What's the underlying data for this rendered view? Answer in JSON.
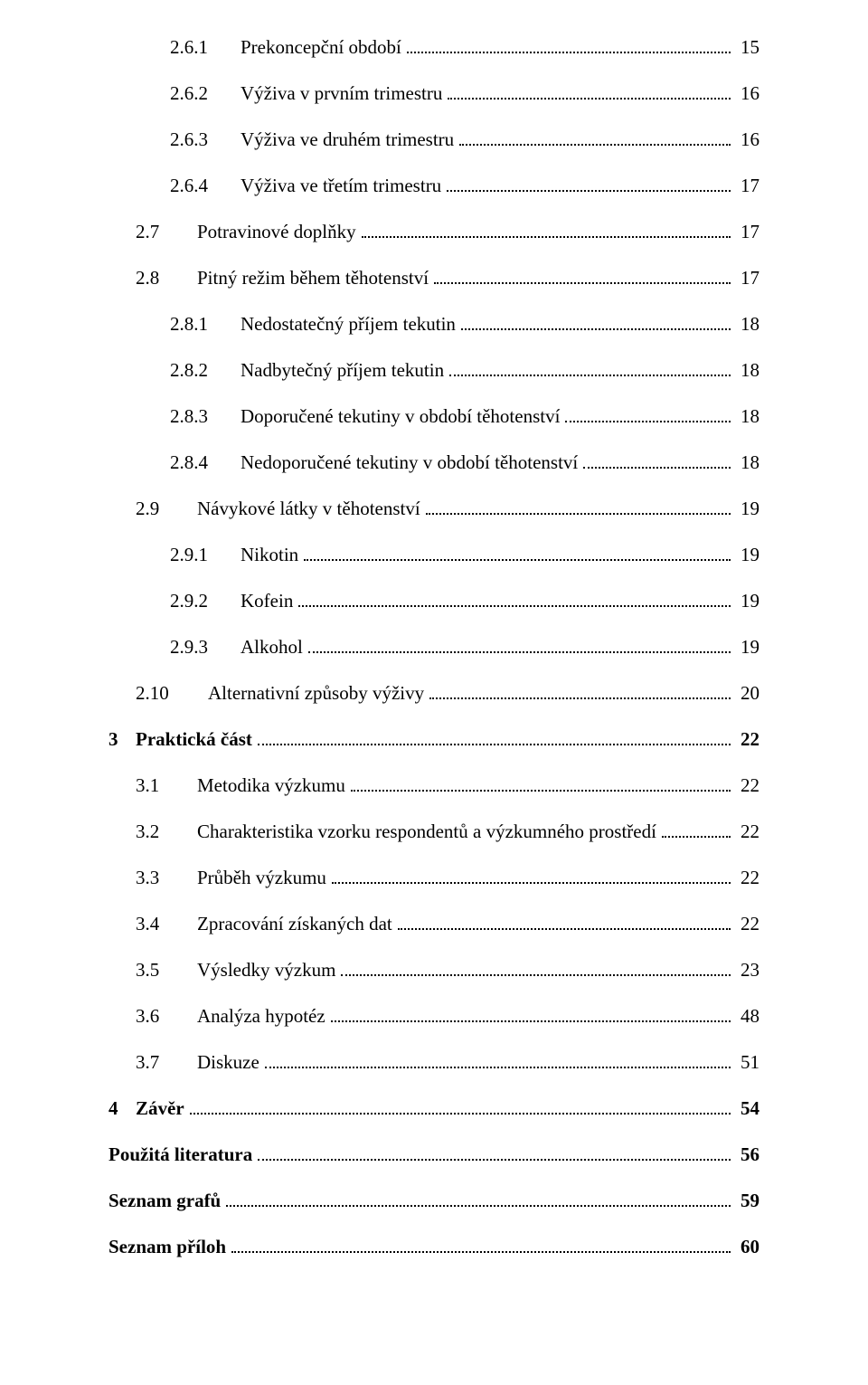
{
  "toc": [
    {
      "level": 2,
      "num": "2.6.1",
      "title": "Prekoncepční období",
      "page": "15"
    },
    {
      "level": 2,
      "num": "2.6.2",
      "title": "Výživa v prvním trimestru",
      "page": "16"
    },
    {
      "level": 2,
      "num": "2.6.3",
      "title": "Výživa ve druhém trimestru",
      "page": "16"
    },
    {
      "level": 2,
      "num": "2.6.4",
      "title": "Výživa ve třetím trimestru",
      "page": "17"
    },
    {
      "level": 1,
      "num": "2.7",
      "title": "Potravinové doplňky",
      "page": "17"
    },
    {
      "level": 1,
      "num": "2.8",
      "title": "Pitný režim během těhotenství",
      "page": "17"
    },
    {
      "level": 2,
      "num": "2.8.1",
      "title": "Nedostatečný příjem tekutin",
      "page": "18"
    },
    {
      "level": 2,
      "num": "2.8.2",
      "title": "Nadbytečný příjem tekutin",
      "page": "18"
    },
    {
      "level": 2,
      "num": "2.8.3",
      "title": "Doporučené tekutiny v období těhotenství",
      "page": "18"
    },
    {
      "level": 2,
      "num": "2.8.4",
      "title": "Nedoporučené tekutiny v období těhotenství",
      "page": "18"
    },
    {
      "level": 1,
      "num": "2.9",
      "title": "Návykové látky v těhotenství",
      "page": "19"
    },
    {
      "level": 2,
      "num": "2.9.1",
      "title": "Nikotin",
      "page": "19"
    },
    {
      "level": 2,
      "num": "2.9.2",
      "title": "Kofein",
      "page": "19"
    },
    {
      "level": 2,
      "num": "2.9.3",
      "title": "Alkohol",
      "page": "19"
    },
    {
      "level": 1,
      "num": "2.10",
      "title": "Alternativní způsoby výživy",
      "page": "20",
      "wide": true
    },
    {
      "level": 0,
      "num": "3",
      "title": "Praktická část",
      "page": "22"
    },
    {
      "level": 1,
      "num": "3.1",
      "title": "Metodika výzkumu",
      "page": "22"
    },
    {
      "level": 1,
      "num": "3.2",
      "title": "Charakteristika vzorku respondentů a výzkumného prostředí",
      "page": "22"
    },
    {
      "level": 1,
      "num": "3.3",
      "title": "Průběh výzkumu",
      "page": "22"
    },
    {
      "level": 1,
      "num": "3.4",
      "title": "Zpracování získaných dat",
      "page": "22"
    },
    {
      "level": 1,
      "num": "3.5",
      "title": "Výsledky výzkum",
      "page": "23"
    },
    {
      "level": 1,
      "num": "3.6",
      "title": "Analýza hypotéz",
      "page": "48"
    },
    {
      "level": 1,
      "num": "3.7",
      "title": "Diskuze",
      "page": "51"
    },
    {
      "level": 0,
      "num": "4",
      "title": "Závěr",
      "page": "54"
    },
    {
      "level": "0nb",
      "num": "",
      "title": "Použitá literatura",
      "page": "56"
    },
    {
      "level": "0nb",
      "num": "",
      "title": "Seznam grafů",
      "page": "59"
    },
    {
      "level": "0nb",
      "num": "",
      "title": "Seznam příloh",
      "page": "60"
    }
  ]
}
